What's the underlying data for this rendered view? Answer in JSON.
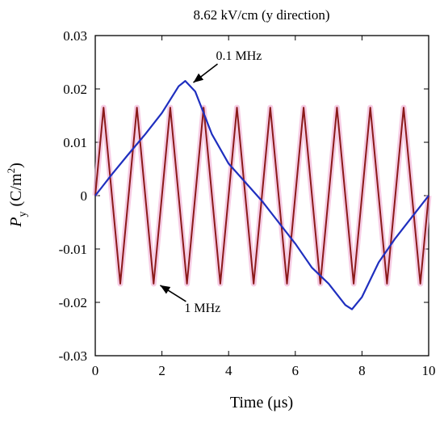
{
  "chart_data": {
    "type": "line",
    "title": "8.62 kV/cm (y direction)",
    "xlabel": "Time (μs)",
    "ylabel": {
      "symbol": "P",
      "subscript": "y",
      "unit_open": "(C/m",
      "unit_sup": "2",
      "unit_close": ")"
    },
    "xlim": [
      0,
      10
    ],
    "ylim": [
      -0.03,
      0.03
    ],
    "x_ticks": [
      0,
      2,
      4,
      6,
      8,
      10
    ],
    "x_tick_labels": [
      "0",
      "2",
      "4",
      "6",
      "8",
      "10"
    ],
    "y_ticks": [
      0.03,
      0.02,
      0.01,
      0,
      -0.01,
      -0.02,
      -0.03
    ],
    "y_tick_labels": [
      "0.03",
      "0.02",
      "0.01",
      "0",
      "-0.01",
      "-0.02",
      "-0.03"
    ],
    "grid": false,
    "series": [
      {
        "name": "1 MHz",
        "color": "#8b1a1a",
        "x": [
          0,
          0.25,
          0.75,
          1.25,
          1.75,
          2.25,
          2.75,
          3.25,
          3.75,
          4.25,
          4.75,
          5.25,
          5.75,
          6.25,
          6.75,
          7.25,
          7.75,
          8.25,
          8.75,
          9.25,
          9.75,
          10
        ],
        "y": [
          0,
          0.0165,
          -0.0165,
          0.0165,
          -0.0165,
          0.0165,
          -0.0165,
          0.0165,
          -0.0165,
          0.0165,
          -0.0165,
          0.0165,
          -0.0165,
          0.0165,
          -0.0165,
          0.0165,
          -0.0165,
          0.0165,
          -0.0165,
          0.0165,
          -0.0165,
          0
        ]
      },
      {
        "name": "0.1 MHz",
        "color": "#1f2fbf",
        "x": [
          0,
          0.5,
          1.0,
          1.5,
          2.0,
          2.5,
          2.7,
          3.0,
          3.5,
          4.0,
          4.5,
          5.0,
          5.5,
          6.0,
          6.5,
          7.0,
          7.5,
          7.7,
          8.0,
          8.5,
          9.0,
          9.5,
          10.0
        ],
        "y": [
          0,
          0.004,
          0.0078,
          0.0115,
          0.0155,
          0.0205,
          0.0215,
          0.0195,
          0.0115,
          0.006,
          0.0025,
          -0.001,
          -0.005,
          -0.009,
          -0.0135,
          -0.0165,
          -0.0205,
          -0.0213,
          -0.019,
          -0.0125,
          -0.008,
          -0.004,
          0
        ]
      }
    ],
    "annotations": [
      {
        "text": "0.1 MHz",
        "x": 2.7,
        "y": 0.0215
      },
      {
        "text": "1 MHz",
        "x": 1.85,
        "y": -0.0165
      }
    ]
  }
}
